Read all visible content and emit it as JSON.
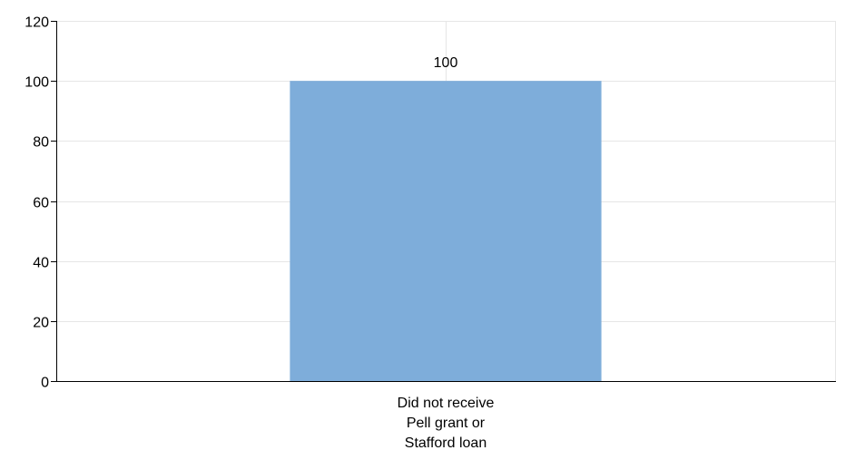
{
  "chart_data": {
    "type": "bar",
    "categories": [
      "Did not receive Pell grant or Stafford loan"
    ],
    "category_label_lines": [
      [
        "Did not receive",
        "Pell grant or",
        "Stafford loan"
      ]
    ],
    "values": [
      100
    ],
    "data_labels": [
      "100"
    ],
    "y_ticks": [
      "0",
      "20",
      "40",
      "60",
      "80",
      "100",
      "120"
    ],
    "ylim": [
      0,
      120
    ],
    "grid": true,
    "legend": "none",
    "title": "",
    "xlabel": "",
    "ylabel": ""
  },
  "colors": {
    "bar": "#7eadda",
    "grid": "#e6e6e6",
    "axis": "#000000",
    "background": "#ffffff"
  }
}
